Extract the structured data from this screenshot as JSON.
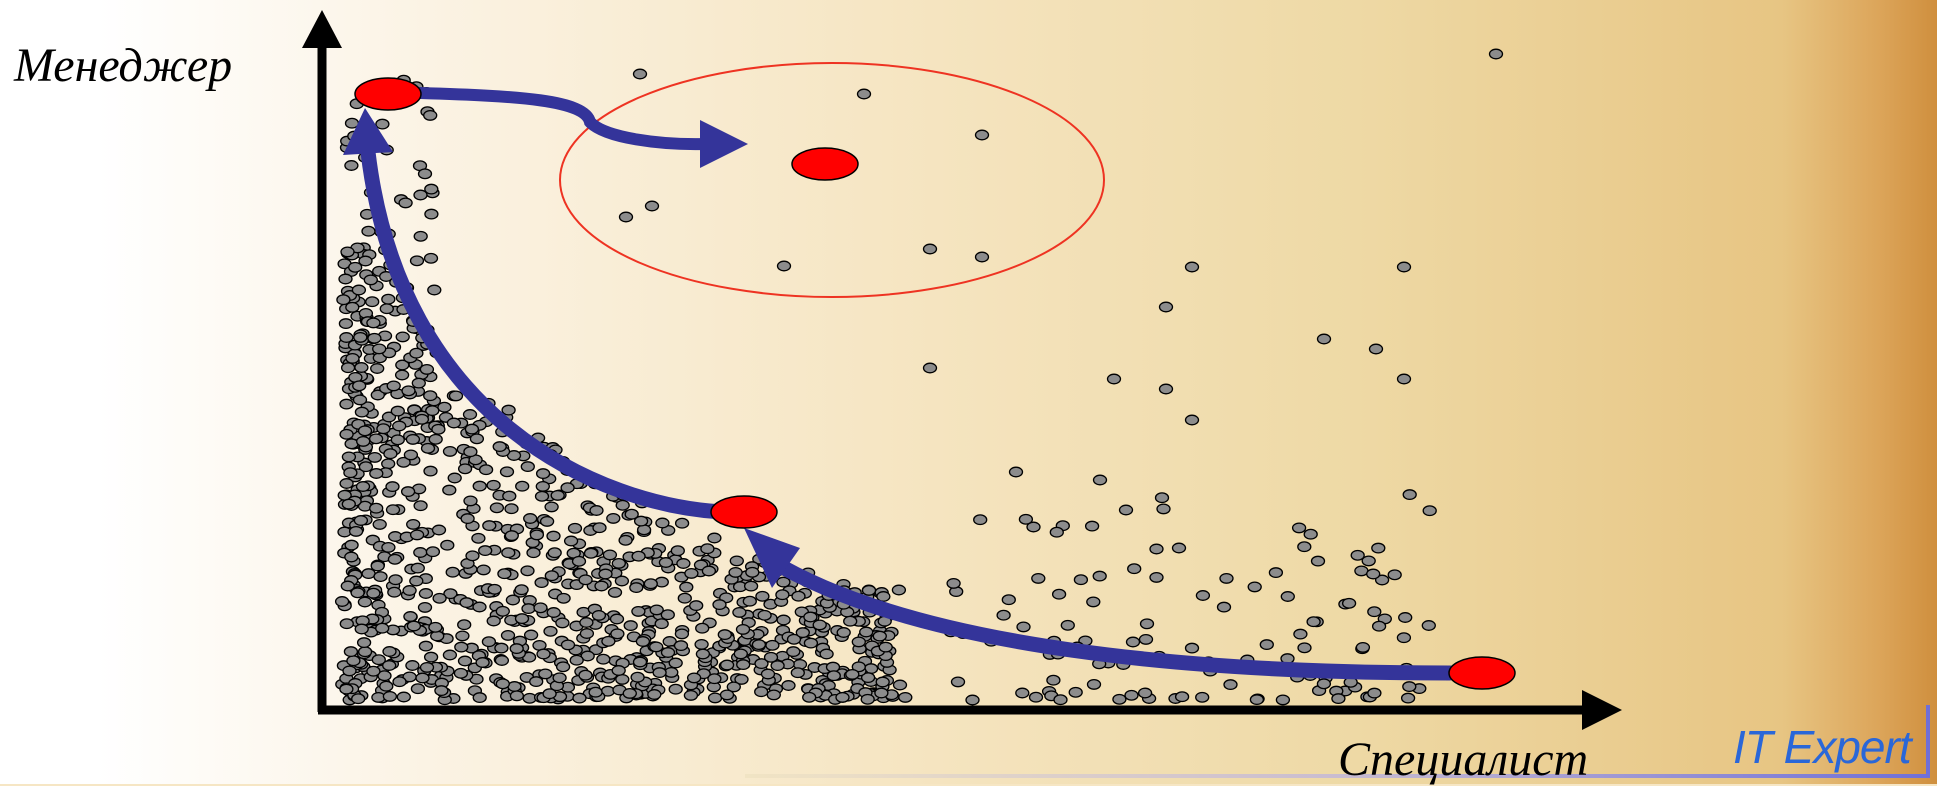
{
  "diagram": {
    "y_axis_label": "Менеджер",
    "x_axis_label": "Специалист",
    "brand": "IT Expert",
    "colors": {
      "dots": "#8c8c8c",
      "highlight": "#ff0000",
      "arrows": "#34349a",
      "ellipse_outline": "#ee3322",
      "axes": "#000000",
      "brand": "#2a67d8"
    }
  }
}
